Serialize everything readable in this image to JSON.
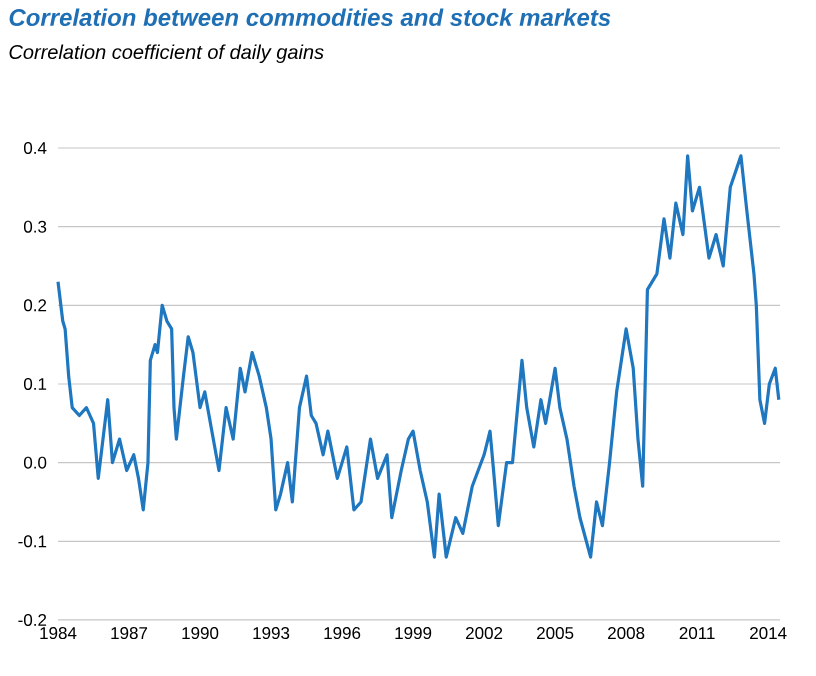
{
  "chart_data": {
    "type": "line",
    "title": "Correlation between commodities and stock markets",
    "subtitle": "Correlation coefficient of daily gains",
    "color": "#1f77c0",
    "x": [
      1984.0,
      1984.2,
      1984.3,
      1984.45,
      1984.6,
      1984.9,
      1985.2,
      1985.5,
      1985.7,
      1985.9,
      1986.1,
      1986.3,
      1986.6,
      1986.9,
      1987.2,
      1987.4,
      1987.6,
      1987.8,
      1987.9,
      1988.1,
      1988.2,
      1988.4,
      1988.6,
      1988.8,
      1988.9,
      1989.0,
      1989.3,
      1989.5,
      1989.7,
      1990.0,
      1990.2,
      1990.5,
      1990.8,
      1991.1,
      1991.4,
      1991.7,
      1991.9,
      1992.2,
      1992.5,
      1992.8,
      1993.0,
      1993.2,
      1993.4,
      1993.7,
      1993.9,
      1994.2,
      1994.5,
      1994.7,
      1994.9,
      1995.2,
      1995.4,
      1995.8,
      1996.2,
      1996.5,
      1996.8,
      1997.2,
      1997.5,
      1997.9,
      1998.1,
      1998.5,
      1998.8,
      1999.0,
      1999.3,
      1999.6,
      1999.9,
      2000.1,
      2000.4,
      2000.8,
      2001.1,
      2001.5,
      2002.0,
      2002.25,
      2002.4,
      2002.6,
      2002.95,
      2003.2,
      2003.6,
      2003.8,
      2004.1,
      2004.4,
      2004.6,
      2005.0,
      2005.2,
      2005.5,
      2005.8,
      2006.05,
      2006.5,
      2006.75,
      2007.0,
      2007.3,
      2007.6,
      2008.0,
      2008.3,
      2008.5,
      2008.7,
      2008.9,
      2009.3,
      2009.6,
      2009.85,
      2010.1,
      2010.4,
      2010.6,
      2010.8,
      2011.1,
      2011.5,
      2011.8,
      2012.1,
      2012.4,
      2012.85,
      2013.1,
      2013.4,
      2013.5,
      2013.65,
      2013.85,
      2014.05,
      2014.3,
      2014.45
    ],
    "values": [
      0.23,
      0.18,
      0.17,
      0.11,
      0.07,
      0.06,
      0.07,
      0.05,
      -0.02,
      0.03,
      0.08,
      0.0,
      0.03,
      -0.01,
      0.01,
      -0.02,
      -0.06,
      0.0,
      0.13,
      0.15,
      0.14,
      0.2,
      0.18,
      0.17,
      0.07,
      0.03,
      0.11,
      0.16,
      0.14,
      0.07,
      0.09,
      0.04,
      -0.01,
      0.07,
      0.03,
      0.12,
      0.09,
      0.14,
      0.11,
      0.07,
      0.03,
      -0.06,
      -0.04,
      0.0,
      -0.05,
      0.07,
      0.11,
      0.06,
      0.05,
      0.01,
      0.04,
      -0.02,
      0.02,
      -0.06,
      -0.05,
      0.03,
      -0.02,
      0.01,
      -0.07,
      -0.01,
      0.03,
      0.04,
      -0.01,
      -0.05,
      -0.12,
      -0.04,
      -0.12,
      -0.07,
      -0.09,
      -0.03,
      0.01,
      0.04,
      -0.01,
      -0.08,
      0.0,
      0.0,
      0.13,
      0.07,
      0.02,
      0.08,
      0.05,
      0.12,
      0.07,
      0.03,
      -0.03,
      -0.07,
      -0.12,
      -0.05,
      -0.08,
      0.0,
      0.09,
      0.17,
      0.12,
      0.03,
      -0.03,
      0.22,
      0.24,
      0.31,
      0.26,
      0.33,
      0.29,
      0.39,
      0.32,
      0.35,
      0.26,
      0.29,
      0.25,
      0.35,
      0.39,
      0.32,
      0.24,
      0.2,
      0.08,
      0.05,
      0.1,
      0.12,
      0.08
    ],
    "xlim": [
      1984,
      2014.5
    ],
    "xticks": [
      1984,
      1987,
      1990,
      1993,
      1996,
      1999,
      2002,
      2005,
      2008,
      2011,
      2014
    ],
    "ylim": [
      -0.2,
      0.4
    ],
    "yticks": [
      {
        "value": -0.2,
        "label": "-0.2"
      },
      {
        "value": -0.1,
        "label": "-0.1"
      },
      {
        "value": 0,
        "label": "0.0"
      },
      {
        "value": 0.1,
        "label": "0.1"
      },
      {
        "value": 0.2,
        "label": "0.2"
      },
      {
        "value": 0.3,
        "label": "0.3"
      },
      {
        "value": 0.4,
        "label": "0.4"
      }
    ],
    "grid": "y"
  }
}
